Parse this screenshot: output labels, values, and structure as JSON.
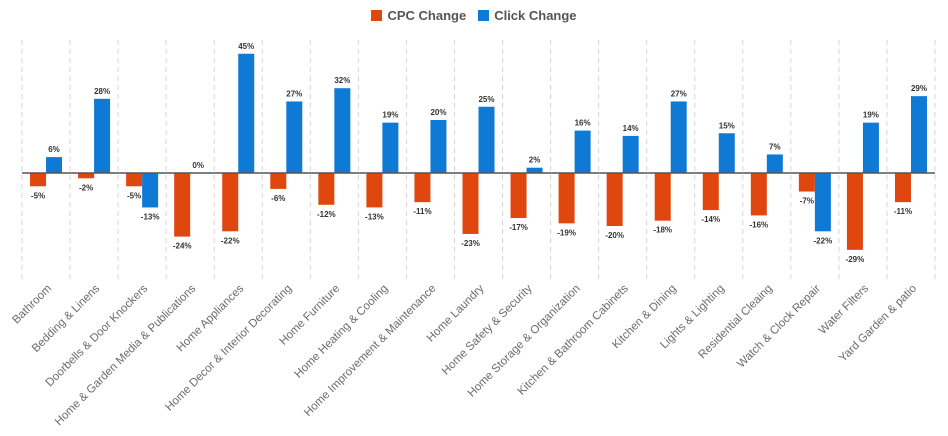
{
  "chart_data": {
    "type": "bar",
    "legend_position": "top-center",
    "grid": "vertical dashed",
    "ylim": [
      -30,
      45
    ],
    "value_suffix": "%",
    "categories": [
      "Bathroom",
      "Bedding & Linens",
      "Doorbells & Door Knockers",
      "Home & Garden Media & Publications",
      "Home  Appliances",
      "Home  Decor & Interior Decorating",
      "Home  Furniture",
      "Home  Heating & Cooling",
      "Home  Improvement & Maintenance",
      "Home  Laundry",
      "Home  Safety & Security",
      "Home  Storage & Organization",
      "Kitchen & Bathroom Cabinets",
      "Kitchen & Dining",
      "Lights & Lighting",
      "Residential Cleaing",
      "Watch & Clock Repair",
      "Water Filters",
      "Yard Garden & patio"
    ],
    "series": [
      {
        "name": "CPC Change",
        "color": "#e0470e",
        "values": [
          -5,
          -2,
          -5,
          -24,
          -22,
          -6,
          -12,
          -13,
          -11,
          -23,
          -17,
          -19,
          -20,
          -18,
          -14,
          -16,
          -7,
          -29,
          -11
        ]
      },
      {
        "name": "Click Change",
        "color": "#0f7ad6",
        "values": [
          6,
          28,
          -13,
          0,
          45,
          27,
          32,
          19,
          20,
          25,
          2,
          16,
          14,
          27,
          15,
          7,
          -22,
          19,
          29
        ]
      }
    ]
  }
}
